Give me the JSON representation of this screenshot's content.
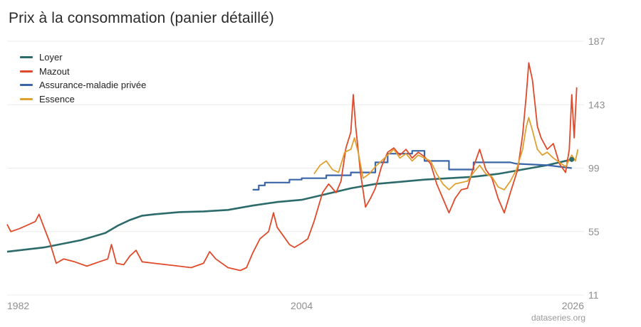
{
  "title": "Prix à la consommation (panier détaillé)",
  "credit": "dataseries.org",
  "chart_data": {
    "type": "line",
    "title": "Prix à la consommation (panier détaillé)",
    "xlabel": "",
    "ylabel": "",
    "xlim": [
      1980,
      2027
    ],
    "ylim": [
      11,
      187
    ],
    "yticks": [
      11,
      55,
      99,
      143,
      187
    ],
    "xticks": [
      1982,
      2004,
      2026
    ],
    "grid": true,
    "legend_position": "top-left",
    "series": [
      {
        "name": "Loyer",
        "color": "#2d6b6b",
        "points": [
          [
            1980,
            41
          ],
          [
            1983,
            44
          ],
          [
            1986,
            49
          ],
          [
            1988,
            54
          ],
          [
            1989,
            59
          ],
          [
            1990,
            63
          ],
          [
            1991,
            66
          ],
          [
            1992,
            67
          ],
          [
            1994,
            68.5
          ],
          [
            1996,
            69
          ],
          [
            1998,
            70
          ],
          [
            2000,
            73
          ],
          [
            2002,
            75.5
          ],
          [
            2004,
            77
          ],
          [
            2006,
            81
          ],
          [
            2008,
            85
          ],
          [
            2010,
            88
          ],
          [
            2012,
            89.5
          ],
          [
            2014,
            91
          ],
          [
            2016,
            92
          ],
          [
            2018,
            93
          ],
          [
            2020,
            95
          ],
          [
            2022,
            98
          ],
          [
            2024,
            101
          ],
          [
            2025,
            103
          ],
          [
            2026,
            105
          ]
        ]
      },
      {
        "name": "Mazout",
        "color": "#e04a2a",
        "points": [
          [
            1980,
            60
          ],
          [
            1980.3,
            55
          ],
          [
            1981,
            57
          ],
          [
            1981.8,
            60
          ],
          [
            1982.3,
            62
          ],
          [
            1982.6,
            67
          ],
          [
            1983,
            58
          ],
          [
            1983.5,
            47
          ],
          [
            1984,
            33
          ],
          [
            1984.6,
            36
          ],
          [
            1985.5,
            34
          ],
          [
            1986.5,
            31
          ],
          [
            1987.5,
            34
          ],
          [
            1988.2,
            36
          ],
          [
            1988.5,
            46
          ],
          [
            1988.9,
            33
          ],
          [
            1989.5,
            32
          ],
          [
            1990,
            38
          ],
          [
            1990.5,
            42
          ],
          [
            1991,
            34
          ],
          [
            1992,
            33
          ],
          [
            1993,
            32
          ],
          [
            1994,
            31
          ],
          [
            1995,
            30
          ],
          [
            1996,
            33
          ],
          [
            1996.5,
            41
          ],
          [
            1997,
            36
          ],
          [
            1998,
            30
          ],
          [
            1999,
            28
          ],
          [
            1999.5,
            30
          ],
          [
            2000,
            40
          ],
          [
            2000.6,
            50
          ],
          [
            2001.3,
            55
          ],
          [
            2001.7,
            68
          ],
          [
            2002,
            58
          ],
          [
            2002.5,
            52
          ],
          [
            2003,
            46
          ],
          [
            2003.4,
            44
          ],
          [
            2004,
            47
          ],
          [
            2004.5,
            50
          ],
          [
            2005,
            62
          ],
          [
            2005.7,
            82
          ],
          [
            2006.2,
            88
          ],
          [
            2006.8,
            82
          ],
          [
            2007.2,
            90
          ],
          [
            2007.6,
            113
          ],
          [
            2008,
            124
          ],
          [
            2008.2,
            150
          ],
          [
            2008.4,
            128
          ],
          [
            2008.8,
            95
          ],
          [
            2009.2,
            72
          ],
          [
            2009.6,
            78
          ],
          [
            2010,
            85
          ],
          [
            2010.5,
            100
          ],
          [
            2011,
            110
          ],
          [
            2011.5,
            113
          ],
          [
            2012,
            108
          ],
          [
            2012.5,
            112
          ],
          [
            2013,
            106
          ],
          [
            2013.5,
            110
          ],
          [
            2014,
            107
          ],
          [
            2014.5,
            102
          ],
          [
            2015,
            88
          ],
          [
            2015.5,
            78
          ],
          [
            2016,
            68
          ],
          [
            2016.5,
            78
          ],
          [
            2017,
            84
          ],
          [
            2017.5,
            85
          ],
          [
            2018,
            100
          ],
          [
            2018.5,
            112
          ],
          [
            2019,
            98
          ],
          [
            2019.5,
            92
          ],
          [
            2020,
            78
          ],
          [
            2020.5,
            68
          ],
          [
            2021,
            82
          ],
          [
            2021.6,
            98
          ],
          [
            2022,
            122
          ],
          [
            2022.3,
            150
          ],
          [
            2022.5,
            172
          ],
          [
            2022.8,
            160
          ],
          [
            2023.2,
            128
          ],
          [
            2023.5,
            120
          ],
          [
            2024,
            112
          ],
          [
            2024.5,
            116
          ],
          [
            2025,
            102
          ],
          [
            2025.5,
            96
          ],
          [
            2025.8,
            112
          ],
          [
            2026,
            150
          ],
          [
            2026.2,
            120
          ],
          [
            2026.4,
            155
          ]
        ]
      },
      {
        "name": "Assurance-maladie privée",
        "color": "#3a66a8",
        "points": [
          [
            2000,
            84
          ],
          [
            2000.5,
            84
          ],
          [
            2000.5,
            87
          ],
          [
            2001,
            87
          ],
          [
            2001,
            89
          ],
          [
            2003,
            89
          ],
          [
            2003,
            91
          ],
          [
            2004,
            91
          ],
          [
            2004,
            92
          ],
          [
            2006,
            92
          ],
          [
            2006,
            94
          ],
          [
            2008,
            94
          ],
          [
            2008,
            96
          ],
          [
            2010,
            96
          ],
          [
            2010,
            103
          ],
          [
            2011,
            103
          ],
          [
            2011,
            109
          ],
          [
            2013,
            109
          ],
          [
            2013,
            111
          ],
          [
            2014,
            111
          ],
          [
            2014,
            104
          ],
          [
            2016,
            104
          ],
          [
            2016,
            98
          ],
          [
            2018,
            98
          ],
          [
            2018,
            103
          ],
          [
            2021,
            103
          ],
          [
            2021.5,
            102
          ],
          [
            2024,
            101
          ],
          [
            2025,
            100
          ],
          [
            2026,
            99
          ]
        ]
      },
      {
        "name": "Essence",
        "color": "#e0a030",
        "points": [
          [
            2005,
            95
          ],
          [
            2005.5,
            101
          ],
          [
            2006,
            104
          ],
          [
            2006.5,
            98
          ],
          [
            2007,
            96
          ],
          [
            2007.5,
            110
          ],
          [
            2008,
            112
          ],
          [
            2008.3,
            120
          ],
          [
            2008.6,
            110
          ],
          [
            2009,
            92
          ],
          [
            2009.5,
            95
          ],
          [
            2010,
            100
          ],
          [
            2010.5,
            104
          ],
          [
            2011,
            108
          ],
          [
            2011.5,
            112
          ],
          [
            2012,
            106
          ],
          [
            2012.5,
            109
          ],
          [
            2013,
            104
          ],
          [
            2013.5,
            108
          ],
          [
            2014,
            106
          ],
          [
            2014.5,
            104
          ],
          [
            2015,
            95
          ],
          [
            2015.5,
            88
          ],
          [
            2016,
            84
          ],
          [
            2016.5,
            88
          ],
          [
            2017,
            89
          ],
          [
            2017.5,
            90
          ],
          [
            2018,
            96
          ],
          [
            2018.5,
            101
          ],
          [
            2019,
            95
          ],
          [
            2019.5,
            93
          ],
          [
            2020,
            86
          ],
          [
            2020.5,
            84
          ],
          [
            2021,
            90
          ],
          [
            2021.5,
            98
          ],
          [
            2022,
            112
          ],
          [
            2022.3,
            128
          ],
          [
            2022.5,
            134
          ],
          [
            2022.8,
            125
          ],
          [
            2023.2,
            112
          ],
          [
            2023.6,
            108
          ],
          [
            2024,
            110
          ],
          [
            2024.5,
            106
          ],
          [
            2025,
            103
          ],
          [
            2025.5,
            100
          ],
          [
            2026,
            108
          ],
          [
            2026.3,
            104
          ],
          [
            2026.5,
            112
          ]
        ]
      }
    ]
  }
}
